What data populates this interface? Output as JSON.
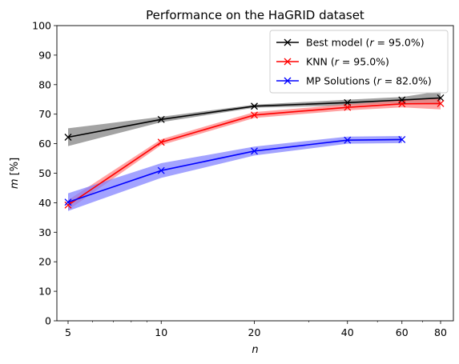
{
  "chart_data": {
    "type": "line",
    "title": "Performance on the HaGRID dataset",
    "xlabel": "n",
    "ylabel": "m [%]",
    "x_scale": "log",
    "x_ticks": [
      5,
      10,
      20,
      40,
      60,
      80
    ],
    "x_tick_labels": [
      "5",
      "10",
      "20",
      "40",
      "60",
      "80"
    ],
    "xlim": [
      4.6,
      88
    ],
    "ylim": [
      0,
      100
    ],
    "y_ticks": [
      0,
      10,
      20,
      30,
      40,
      50,
      60,
      70,
      80,
      90,
      100
    ],
    "y_tick_labels": [
      "0",
      "10",
      "20",
      "30",
      "40",
      "50",
      "60",
      "70",
      "80",
      "90",
      "100"
    ],
    "grid": false,
    "legend_position": "top-right",
    "marker": "x",
    "series": [
      {
        "name": "Best model ($r = 95.0\\%$)",
        "legend_prefix": "Best model (",
        "legend_r": "r",
        "legend_value": " = 95.0%)",
        "color": "#000000",
        "band_color": "#808080",
        "x": [
          5,
          10,
          20,
          40,
          60,
          80
        ],
        "values": [
          62.2,
          68.2,
          72.7,
          73.9,
          74.8,
          75.5
        ],
        "lower": [
          59.2,
          67.3,
          72.2,
          72.9,
          73.8,
          73.2
        ],
        "upper": [
          65.2,
          69.1,
          73.2,
          74.9,
          75.8,
          77.8
        ]
      },
      {
        "name": "KNN ($r = 95.0\\%$)",
        "legend_prefix": "KNN (",
        "legend_r": "r",
        "legend_value": " = 95.0%)",
        "color": "#ff0000",
        "band_color": "#ff8080",
        "x": [
          5,
          10,
          20,
          40,
          60,
          80
        ],
        "values": [
          39.2,
          60.5,
          69.7,
          72.3,
          73.5,
          73.6
        ],
        "lower": [
          37.5,
          59.5,
          68.7,
          71.3,
          72.3,
          71.6
        ],
        "upper": [
          40.9,
          61.5,
          70.7,
          73.3,
          74.7,
          75.6
        ]
      },
      {
        "name": "MP Solutions ($r = 82.0\\%$)",
        "legend_prefix": "MP Solutions (",
        "legend_r": "r",
        "legend_value": " = 82.0%)",
        "color": "#0000ff",
        "band_color": "#8080ff",
        "x": [
          5,
          10,
          20,
          40,
          60
        ],
        "values": [
          40.2,
          50.9,
          57.5,
          61.2,
          61.4
        ],
        "lower": [
          37.2,
          48.4,
          56.0,
          60.0,
          60.2
        ],
        "upper": [
          43.2,
          53.4,
          59.0,
          62.4,
          62.6
        ]
      }
    ]
  }
}
